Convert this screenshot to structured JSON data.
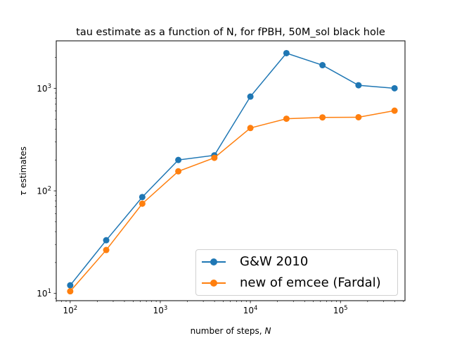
{
  "chart_data": {
    "type": "line",
    "title": "tau estimate as a function of N, for fPBH, 50M_sol black hole",
    "xlabel": "number of steps, N",
    "ylabel": "τ estimates",
    "xscale": "log",
    "yscale": "log",
    "xlim": [
      70,
      520000
    ],
    "ylim": [
      8.5,
      2900
    ],
    "x_ticks": [
      {
        "value": 100,
        "base": "10",
        "exp": "2"
      },
      {
        "value": 1000,
        "base": "10",
        "exp": "3"
      },
      {
        "value": 10000,
        "base": "10",
        "exp": "4"
      },
      {
        "value": 100000,
        "base": "10",
        "exp": "5"
      }
    ],
    "y_ticks": [
      {
        "value": 10,
        "base": "10",
        "exp": "1"
      },
      {
        "value": 100,
        "base": "10",
        "exp": "2"
      },
      {
        "value": 1000,
        "base": "10",
        "exp": "3"
      }
    ],
    "x": [
      100,
      251,
      631,
      1585,
      3981,
      10000,
      25119,
      63096,
      158489,
      398107
    ],
    "series": [
      {
        "name": "G&W 2010",
        "color": "#1f77b4",
        "values": [
          12,
          33,
          87,
          200,
          222,
          830,
          2200,
          1680,
          1070,
          1000
        ]
      },
      {
        "name": "new of emcee (Fardal)",
        "color": "#ff7f0e",
        "values": [
          10.5,
          26.5,
          75,
          155,
          210,
          410,
          505,
          520,
          522,
          605
        ]
      }
    ],
    "legend_position": "lower-right",
    "grid": false
  }
}
